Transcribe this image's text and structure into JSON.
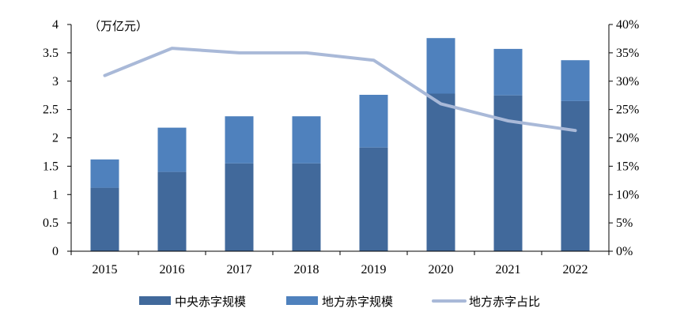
{
  "chart_data": {
    "type": "bar",
    "unit_label": "（万亿元）",
    "categories": [
      "2015",
      "2016",
      "2017",
      "2018",
      "2019",
      "2020",
      "2021",
      "2022"
    ],
    "series": [
      {
        "name": "中央赤字规模",
        "kind": "stacked-bar",
        "axis": "left",
        "color": "#41699b",
        "values": [
          1.12,
          1.4,
          1.55,
          1.55,
          1.83,
          2.78,
          2.75,
          2.65
        ]
      },
      {
        "name": "地方赤字规模",
        "kind": "stacked-bar",
        "axis": "left",
        "color": "#4f81bd",
        "values": [
          0.5,
          0.78,
          0.83,
          0.83,
          0.93,
          0.98,
          0.82,
          0.72
        ]
      },
      {
        "name": "地方赤字占比",
        "kind": "line",
        "axis": "right",
        "color": "#a9b9d8",
        "values": [
          0.31,
          0.358,
          0.35,
          0.35,
          0.337,
          0.26,
          0.23,
          0.213
        ]
      }
    ],
    "y_left": {
      "min": 0,
      "max": 4,
      "ticks": [
        {
          "v": 0,
          "label": "0"
        },
        {
          "v": 0.5,
          "label": "0.5"
        },
        {
          "v": 1,
          "label": "1"
        },
        {
          "v": 1.5,
          "label": "1.5"
        },
        {
          "v": 2,
          "label": "2"
        },
        {
          "v": 2.5,
          "label": "2.5"
        },
        {
          "v": 3,
          "label": "3"
        },
        {
          "v": 3.5,
          "label": "3.5"
        },
        {
          "v": 4,
          "label": "4"
        }
      ]
    },
    "y_right": {
      "min": 0,
      "max": 0.4,
      "ticks": [
        {
          "v": 0,
          "label": "0%"
        },
        {
          "v": 0.05,
          "label": "5%"
        },
        {
          "v": 0.1,
          "label": "10%"
        },
        {
          "v": 0.15,
          "label": "15%"
        },
        {
          "v": 0.2,
          "label": "20%"
        },
        {
          "v": 0.25,
          "label": "25%"
        },
        {
          "v": 0.3,
          "label": "30%"
        },
        {
          "v": 0.35,
          "label": "35%"
        },
        {
          "v": 0.4,
          "label": "40%"
        }
      ]
    },
    "legend": {
      "position": "bottom",
      "items": [
        {
          "label": "中央赤字规模",
          "kind": "bar",
          "color": "#41699b"
        },
        {
          "label": "地方赤字规模",
          "kind": "bar",
          "color": "#4f81bd"
        },
        {
          "label": "地方赤字占比",
          "kind": "line",
          "color": "#a9b9d8"
        }
      ]
    },
    "grid": false
  }
}
